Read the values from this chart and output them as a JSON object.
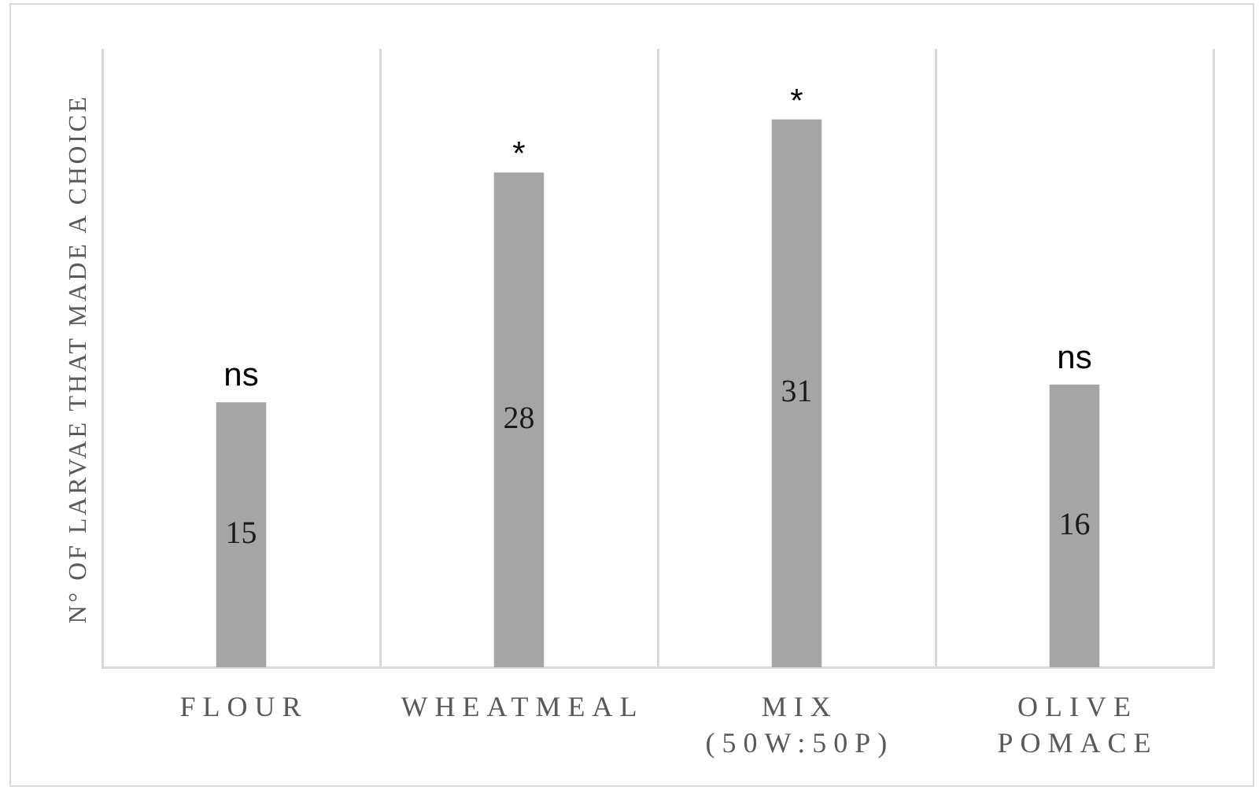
{
  "chart_data": {
    "type": "bar",
    "ylabel": "N° OF LARVAE THAT MADE A CHOICE",
    "categories": [
      "FLOUR",
      "WHEATMEAL",
      "MIX (50W:50P)",
      "OLIVE POMACE"
    ],
    "values": [
      15,
      28,
      31,
      16
    ],
    "color": "#a5a5a5",
    "ylim": [
      0,
      35
    ],
    "tick_labels": "x",
    "grid": "x",
    "data_labels": true,
    "annotations": [
      {
        "text": "ns",
        "x": "FLOUR",
        "y": 15
      },
      {
        "text": "*",
        "x": "WHEATMEAL",
        "y": 28
      },
      {
        "text": "*",
        "x": "MIX (50W:50P)",
        "y": 31
      },
      {
        "text": "ns",
        "x": "OLIVE POMACE",
        "y": 16
      }
    ]
  }
}
